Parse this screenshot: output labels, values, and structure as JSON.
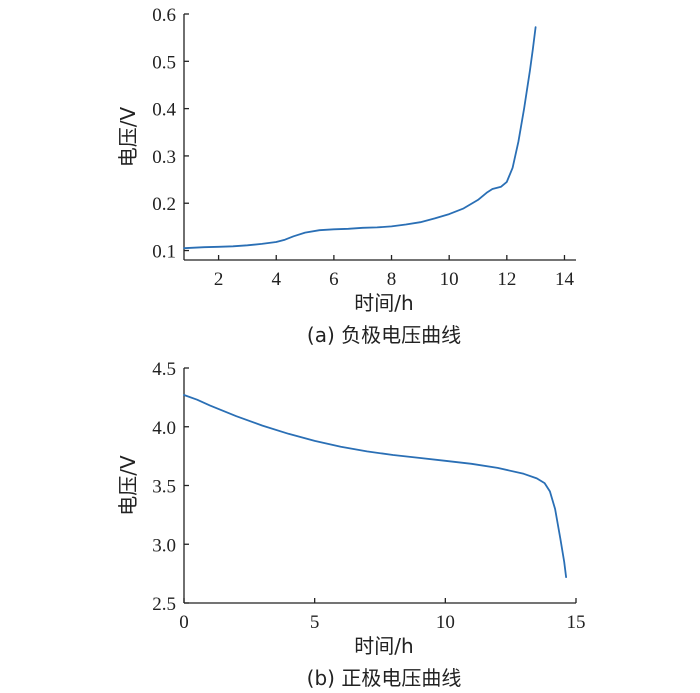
{
  "chart_data": [
    {
      "type": "line",
      "caption": "(a)  负极电压曲线",
      "xlabel": "时间/h",
      "ylabel": "电压/V",
      "xlim": [
        0.8,
        14.4
      ],
      "ylim": [
        0.08,
        0.6
      ],
      "xticks": [
        2,
        4,
        6,
        8,
        10,
        12,
        14
      ],
      "yticks": [
        0.1,
        0.2,
        0.3,
        0.4,
        0.5,
        0.6
      ],
      "color": "#2a6fb5",
      "series": [
        {
          "x": [
            0.8,
            1.5,
            2.0,
            2.5,
            3.0,
            3.5,
            4.0,
            4.3,
            4.6,
            5.0,
            5.5,
            6.0,
            6.5,
            7.0,
            7.5,
            8.0,
            8.5,
            9.0,
            9.5,
            10.0,
            10.5,
            11.0,
            11.3,
            11.5,
            11.8,
            12.0,
            12.2,
            12.4,
            12.6,
            12.8,
            12.9,
            13.0
          ],
          "y": [
            0.105,
            0.107,
            0.108,
            0.109,
            0.111,
            0.114,
            0.118,
            0.123,
            0.13,
            0.138,
            0.143,
            0.145,
            0.146,
            0.148,
            0.149,
            0.151,
            0.155,
            0.16,
            0.168,
            0.177,
            0.189,
            0.207,
            0.222,
            0.23,
            0.235,
            0.245,
            0.275,
            0.33,
            0.4,
            0.48,
            0.525,
            0.572
          ]
        }
      ]
    },
    {
      "type": "line",
      "caption": "(b)  正极电压曲线",
      "xlabel": "时间/h",
      "ylabel": "电压/V",
      "xlim": [
        0,
        15
      ],
      "ylim": [
        2.5,
        4.5
      ],
      "xticks": [
        0,
        5,
        10,
        15
      ],
      "xtick_labels": [
        "0",
        "5",
        "10",
        "15"
      ],
      "yticks": [
        2.5,
        3.0,
        3.5,
        4.0,
        4.5
      ],
      "ytick_labels": [
        "2.5",
        "3.0",
        "3.5",
        "4.0",
        "4.5"
      ],
      "color": "#2a6fb5",
      "series": [
        {
          "x": [
            0,
            0.5,
            1,
            2,
            3,
            4,
            5,
            6,
            7,
            8,
            9,
            10,
            11,
            12,
            13,
            13.5,
            13.8,
            14.0,
            14.2,
            14.4,
            14.55,
            14.62
          ],
          "y": [
            4.27,
            4.23,
            4.18,
            4.09,
            4.01,
            3.94,
            3.88,
            3.83,
            3.79,
            3.76,
            3.735,
            3.71,
            3.685,
            3.65,
            3.6,
            3.56,
            3.52,
            3.45,
            3.3,
            3.05,
            2.85,
            2.72
          ]
        }
      ]
    }
  ]
}
